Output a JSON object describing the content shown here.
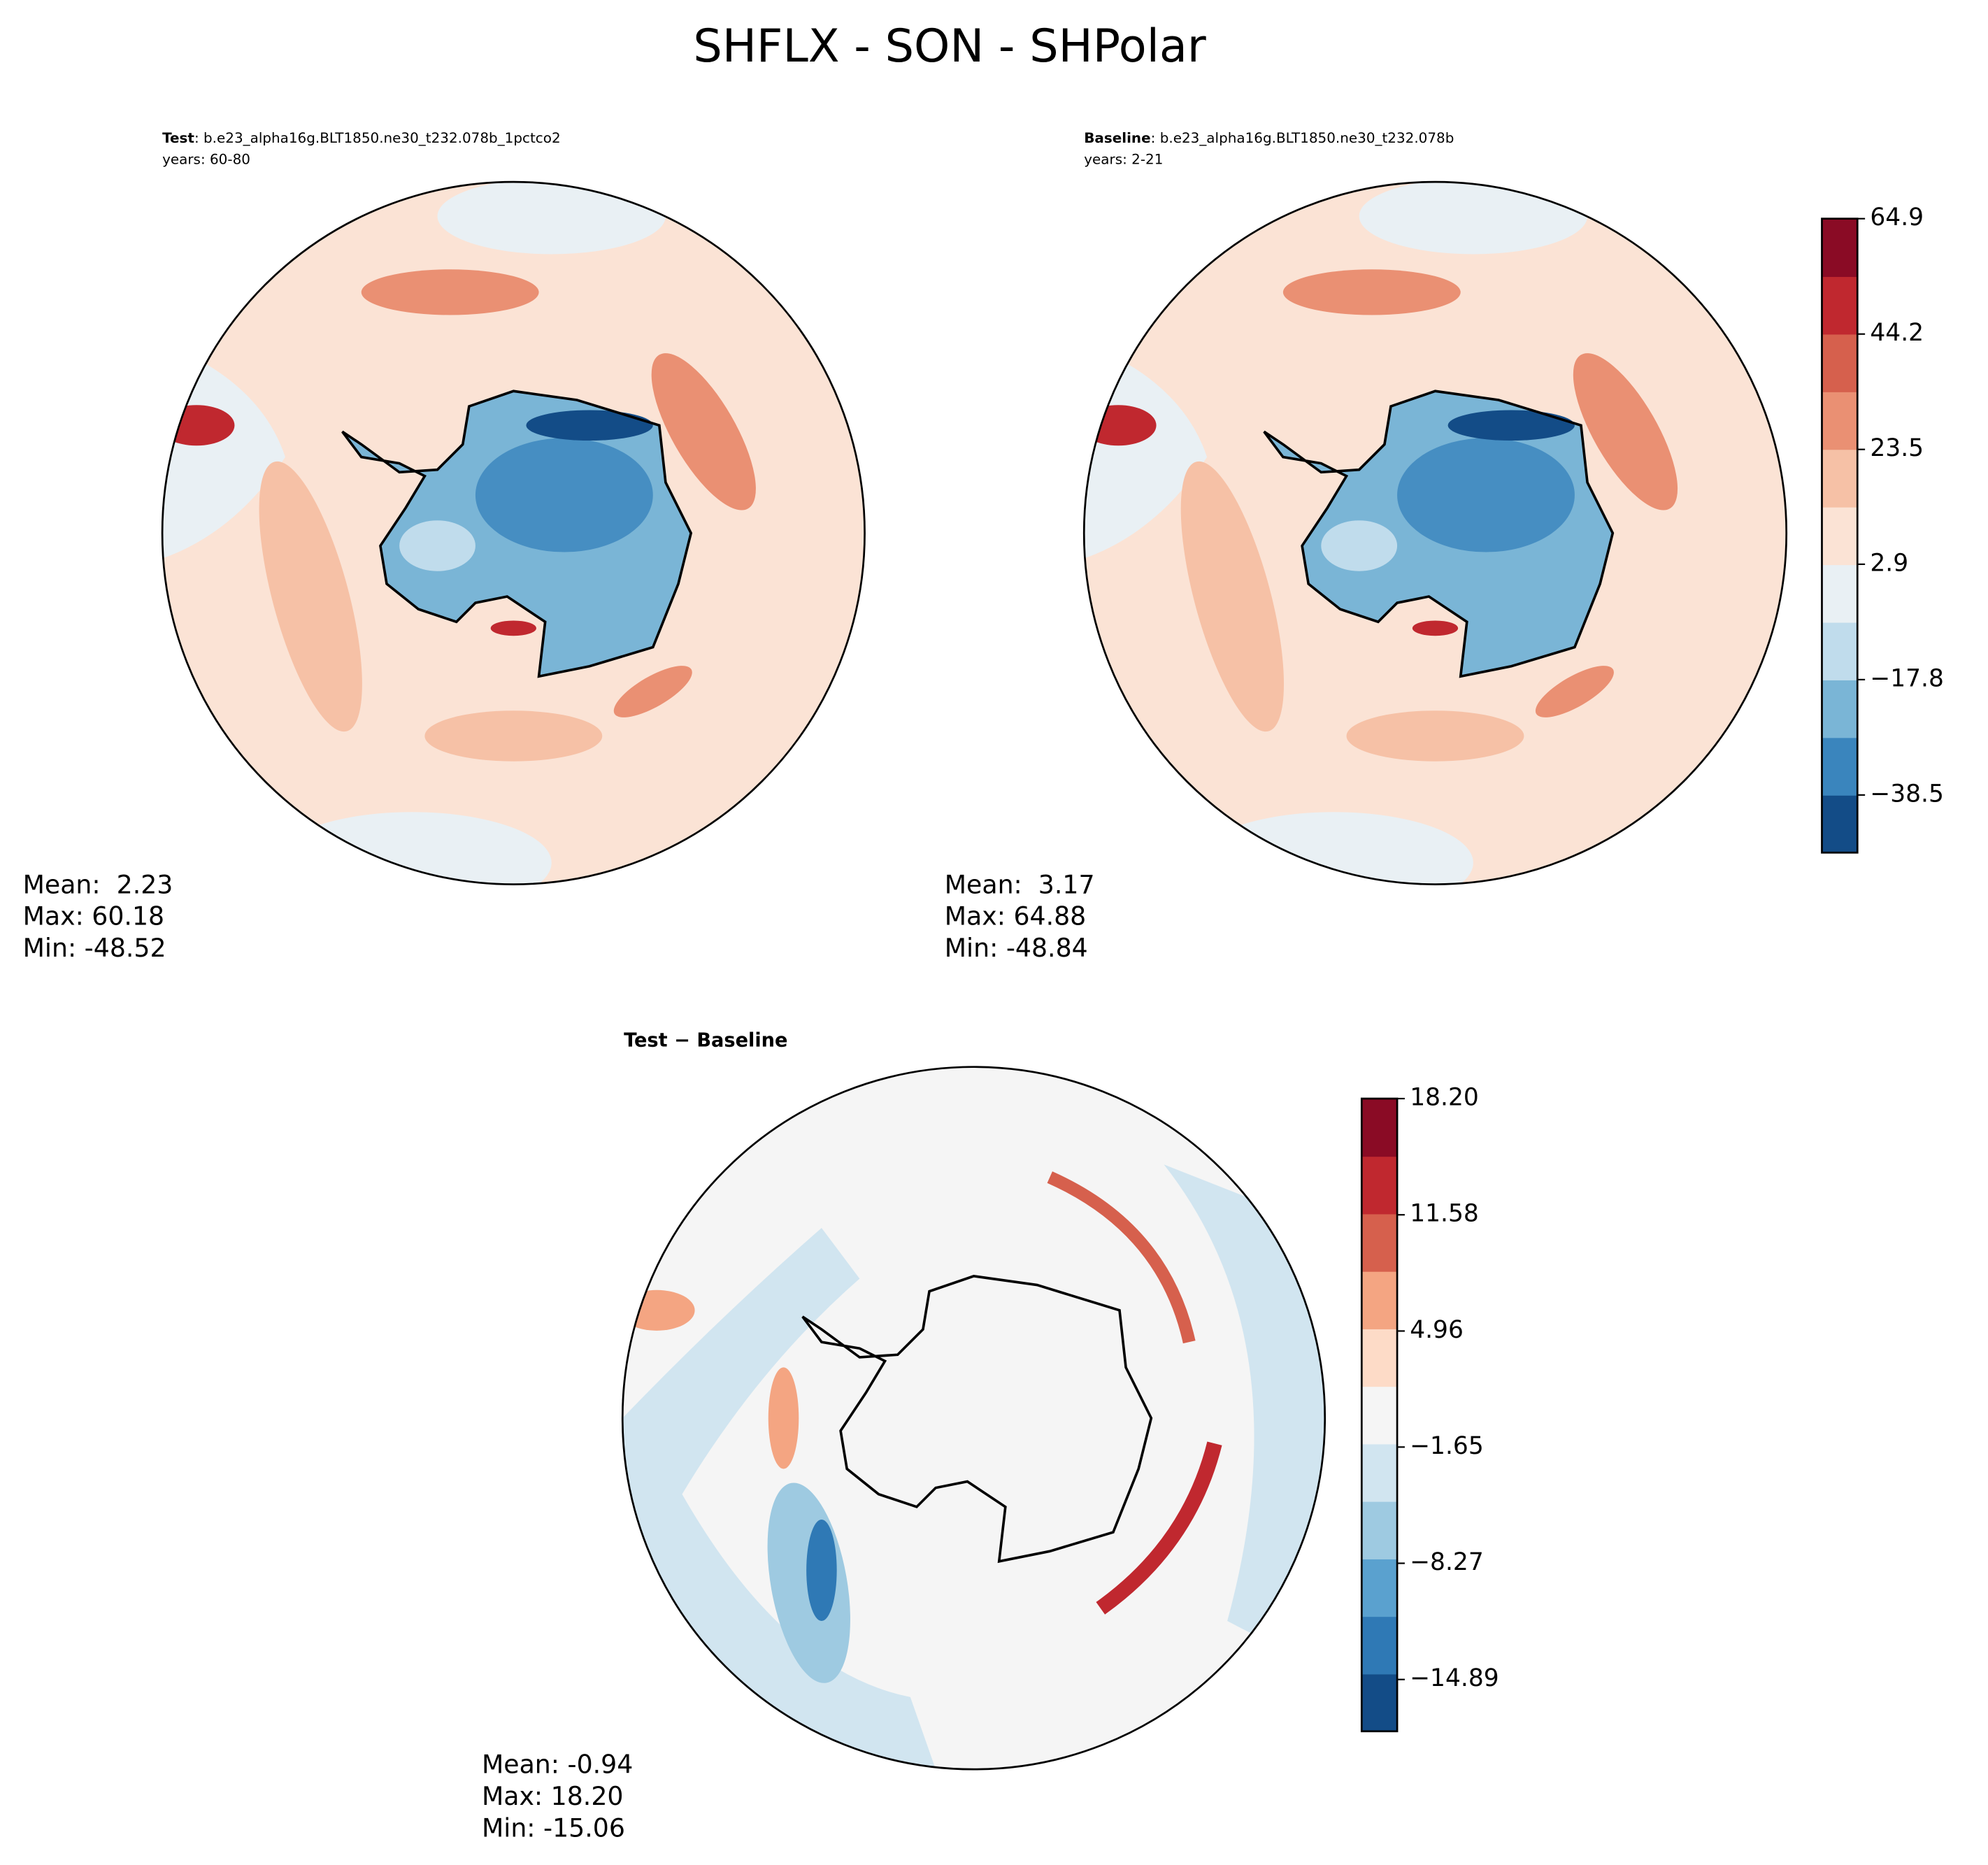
{
  "title": "SHFLX - SON - SHPolar",
  "panels": [
    {
      "label": "Test",
      "case": ": b.e23_alpha16g.BLT1850.ne30_t232.078b_1pctco2",
      "years": "years: 60-80",
      "stats": [
        "Mean:  2.23",
        "Max: 60.18",
        "Min: -48.52"
      ]
    },
    {
      "label": "Baseline",
      "case": ": b.e23_alpha16g.BLT1850.ne30_t232.078b",
      "years": "years: 2-21",
      "stats": [
        "Mean:  3.17",
        "Max: 64.88",
        "Min: -48.84"
      ]
    },
    {
      "label": "Test − Baseline",
      "stats": [
        "Mean: -0.94",
        "Max: 18.20",
        "Min: -15.06"
      ]
    }
  ],
  "colorbars": [
    {
      "clim": [
        -48.84,
        64.9
      ],
      "ticks": [
        64.9,
        44.2,
        23.5,
        2.9,
        {
          "value": -17.8,
          "label": "−17.8"
        },
        {
          "value": -38.5,
          "label": "−38.5"
        }
      ],
      "colors": [
        "#134c87",
        "#3a85bd",
        "#7ab5d6",
        "#c0dcec",
        "#e9f0f4",
        "#fbe3d5",
        "#f6c1a6",
        "#ea9073",
        "#d6604d",
        "#c0282f",
        "#8a0b25"
      ]
    },
    {
      "clim": [
        -17.84,
        18.2
      ],
      "ticks": [
        {
          "value": 18.2,
          "label": "18.20"
        },
        11.58,
        4.96,
        {
          "value": -1.65,
          "label": "−1.65"
        },
        {
          "value": -8.27,
          "label": "−8.27"
        },
        {
          "value": -14.89,
          "label": "−14.89"
        }
      ],
      "colors": [
        "#134c87",
        "#2f79b5",
        "#5aa1cf",
        "#9ecae1",
        "#d1e5f0",
        "#f5f5f5",
        "#fddbc7",
        "#f4a582",
        "#d6604d",
        "#c0282f",
        "#8a0b25"
      ]
    }
  ]
}
